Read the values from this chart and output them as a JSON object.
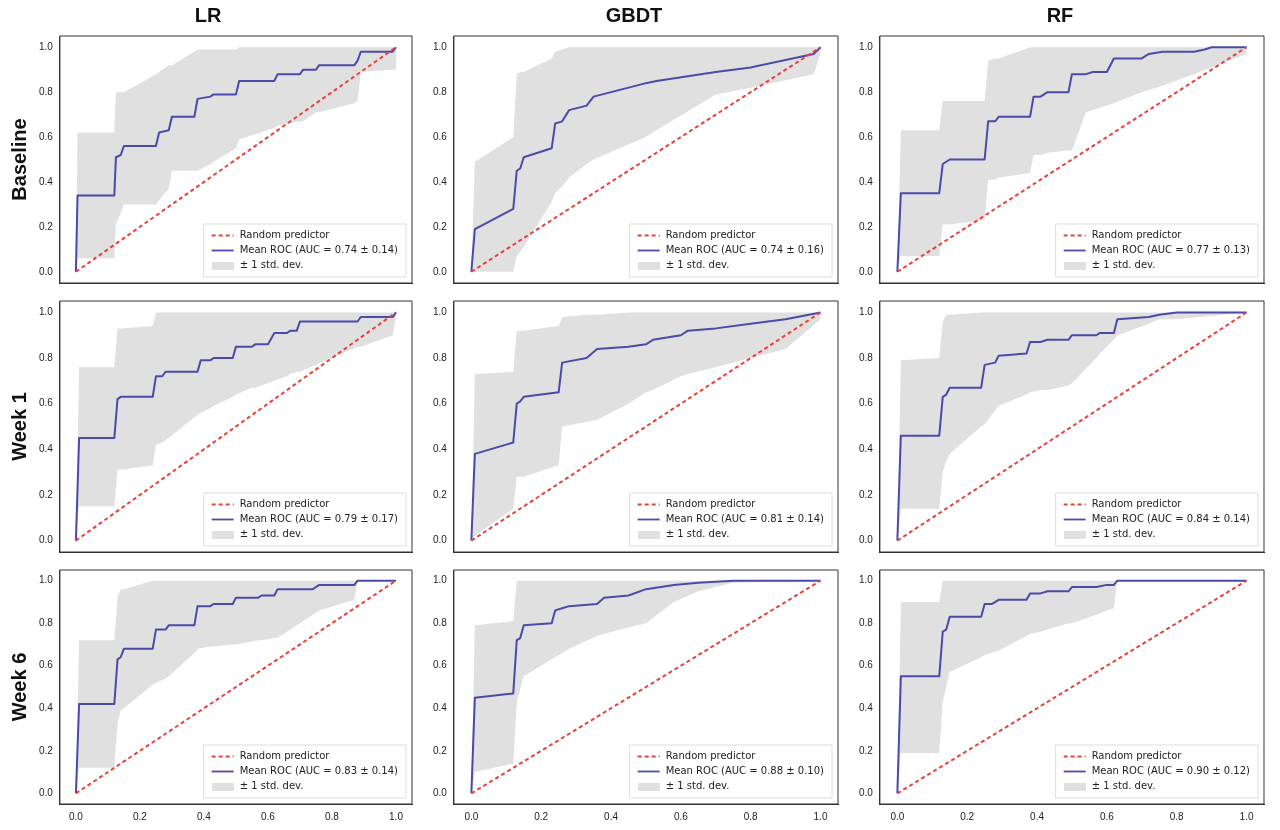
{
  "chart_data": [
    {
      "type": "line",
      "title": "LR",
      "ylabel": "Baseline",
      "annotations": [
        "± 1 std. dev."
      ],
      "xlim": [
        -0.05,
        1.05
      ],
      "ylim": [
        -0.05,
        1.05
      ],
      "xticks": [
        {
          "value": 0,
          "label": null
        },
        {
          "value": 0.2,
          "label": null
        },
        {
          "value": 0.4,
          "label": null
        },
        {
          "value": 0.6,
          "label": null
        },
        {
          "value": 0.8,
          "label": null
        },
        {
          "value": 1,
          "label": null
        }
      ],
      "yticks": [
        {
          "value": 0,
          "label": "0.0"
        },
        {
          "value": 0.2,
          "label": "0.2"
        },
        {
          "value": 0.4,
          "label": "0.4"
        },
        {
          "value": 0.6,
          "label": "0.6"
        },
        {
          "value": 0.8,
          "label": "0.8"
        },
        {
          "value": 1,
          "label": "1.0"
        }
      ],
      "tick_labels": "y",
      "legend": "bottom right",
      "marker": "none",
      "series": [
        {
          "name": "Random predictor",
          "color": "#e8413a",
          "line_style": "dashed",
          "x": [
            0,
            1
          ],
          "values": [
            0,
            1
          ]
        },
        {
          "name": "Mean ROC (AUC = 0.74 ± 0.14)",
          "color": "#4a4aaa",
          "line_style": "solid",
          "x": [
            0,
            0.005,
            0.12,
            0.125,
            0.14,
            0.15,
            0.25,
            0.26,
            0.29,
            0.3,
            0.37,
            0.38,
            0.42,
            0.43,
            0.5,
            0.51,
            0.62,
            0.63,
            0.7,
            0.71,
            0.75,
            0.76,
            0.87,
            0.88,
            0.89,
            0.99,
            1
          ],
          "values": [
            0,
            0.34,
            0.34,
            0.51,
            0.52,
            0.56,
            0.56,
            0.62,
            0.63,
            0.69,
            0.69,
            0.77,
            0.78,
            0.79,
            0.79,
            0.85,
            0.85,
            0.88,
            0.88,
            0.9,
            0.9,
            0.92,
            0.92,
            0.94,
            0.98,
            0.98,
            1
          ],
          "lower": [
            0,
            0.06,
            0.06,
            0.21,
            0.26,
            0.3,
            0.3,
            0.32,
            0.37,
            0.45,
            0.45,
            0.45,
            0.48,
            0.49,
            0.55,
            0.59,
            0.64,
            0.65,
            0.67,
            0.67,
            0.71,
            0.71,
            0.75,
            0.76,
            0.89,
            0.9,
            0.9
          ],
          "upper": [
            0,
            0.62,
            0.62,
            0.8,
            0.8,
            0.8,
            0.88,
            0.89,
            0.92,
            0.92,
            0.98,
            0.99,
            0.99,
            0.99,
            0.99,
            1,
            1,
            1,
            1,
            1,
            1,
            1,
            1,
            1,
            1,
            1,
            1
          ]
        }
      ]
    },
    {
      "type": "line",
      "title": "GBDT",
      "annotations": [
        "± 1 std. dev."
      ],
      "xlim": [
        -0.05,
        1.05
      ],
      "ylim": [
        -0.05,
        1.05
      ],
      "xticks": [
        {
          "value": 0,
          "label": null
        },
        {
          "value": 0.2,
          "label": null
        },
        {
          "value": 0.4,
          "label": null
        },
        {
          "value": 0.6,
          "label": null
        },
        {
          "value": 0.8,
          "label": null
        },
        {
          "value": 1,
          "label": null
        }
      ],
      "yticks": [
        {
          "value": 0,
          "label": "0.0"
        },
        {
          "value": 0.2,
          "label": "0.2"
        },
        {
          "value": 0.4,
          "label": "0.4"
        },
        {
          "value": 0.6,
          "label": "0.6"
        },
        {
          "value": 0.8,
          "label": "0.8"
        },
        {
          "value": 1,
          "label": "1.0"
        }
      ],
      "tick_labels": "y",
      "legend": "bottom right",
      "marker": "none",
      "series": [
        {
          "name": "Random predictor",
          "color": "#e8413a",
          "line_style": "dashed",
          "x": [
            0,
            1
          ],
          "values": [
            0,
            1
          ]
        },
        {
          "name": "Mean ROC (AUC = 0.74 ± 0.16)",
          "color": "#4a4aaa",
          "line_style": "solid",
          "x": [
            0,
            0.01,
            0.12,
            0.13,
            0.14,
            0.15,
            0.23,
            0.24,
            0.26,
            0.28,
            0.33,
            0.35,
            0.5,
            0.53,
            0.7,
            0.8,
            0.98,
            1
          ],
          "values": [
            0,
            0.19,
            0.28,
            0.45,
            0.46,
            0.51,
            0.55,
            0.66,
            0.67,
            0.72,
            0.74,
            0.78,
            0.84,
            0.85,
            0.89,
            0.91,
            0.97,
            1
          ],
          "lower": [
            0,
            0,
            0,
            0.07,
            0.09,
            0.11,
            0.31,
            0.35,
            0.38,
            0.42,
            0.48,
            0.5,
            0.6,
            0.63,
            0.79,
            0.82,
            0.88,
            0.97
          ],
          "upper": [
            0,
            0.49,
            0.6,
            0.88,
            0.89,
            0.89,
            0.95,
            0.98,
            0.99,
            1,
            1,
            1,
            1,
            1,
            1,
            1,
            1,
            1
          ]
        }
      ]
    },
    {
      "type": "line",
      "title": "RF",
      "annotations": [
        "± 1 std. dev."
      ],
      "xlim": [
        -0.05,
        1.05
      ],
      "ylim": [
        -0.05,
        1.05
      ],
      "xticks": [
        {
          "value": 0,
          "label": null
        },
        {
          "value": 0.2,
          "label": null
        },
        {
          "value": 0.4,
          "label": null
        },
        {
          "value": 0.6,
          "label": null
        },
        {
          "value": 0.8,
          "label": null
        },
        {
          "value": 1,
          "label": null
        }
      ],
      "yticks": [
        {
          "value": 0,
          "label": "0.0"
        },
        {
          "value": 0.2,
          "label": "0.2"
        },
        {
          "value": 0.4,
          "label": "0.4"
        },
        {
          "value": 0.6,
          "label": "0.6"
        },
        {
          "value": 0.8,
          "label": "0.8"
        },
        {
          "value": 1,
          "label": "1.0"
        }
      ],
      "tick_labels": "y",
      "legend": "bottom right",
      "marker": "none",
      "series": [
        {
          "name": "Random predictor",
          "color": "#e8413a",
          "line_style": "dashed",
          "x": [
            0,
            1
          ],
          "values": [
            0,
            1
          ]
        },
        {
          "name": "Mean ROC (AUC = 0.77 ± 0.13)",
          "color": "#4a4aaa",
          "line_style": "solid",
          "x": [
            0,
            0.01,
            0.12,
            0.13,
            0.14,
            0.15,
            0.25,
            0.26,
            0.28,
            0.29,
            0.38,
            0.39,
            0.41,
            0.43,
            0.49,
            0.5,
            0.54,
            0.56,
            0.6,
            0.62,
            0.7,
            0.72,
            0.76,
            0.85,
            0.88,
            0.9,
            1
          ],
          "values": [
            0,
            0.35,
            0.35,
            0.48,
            0.49,
            0.5,
            0.5,
            0.67,
            0.67,
            0.69,
            0.69,
            0.78,
            0.78,
            0.8,
            0.8,
            0.88,
            0.88,
            0.89,
            0.89,
            0.95,
            0.95,
            0.97,
            0.98,
            0.98,
            0.99,
            1,
            1
          ],
          "lower": [
            0,
            0.07,
            0.07,
            0.21,
            0.21,
            0.21,
            0.23,
            0.41,
            0.41,
            0.42,
            0.44,
            0.52,
            0.52,
            0.53,
            0.54,
            0.54,
            0.71,
            0.72,
            0.74,
            0.75,
            0.8,
            0.81,
            0.83,
            0.88,
            0.9,
            0.91,
            0.97
          ],
          "upper": [
            0,
            0.63,
            0.63,
            0.76,
            0.76,
            0.76,
            0.76,
            0.94,
            0.95,
            0.95,
            1,
            1,
            1,
            1,
            1,
            1,
            1,
            1,
            1,
            1,
            1,
            1,
            1,
            1,
            1,
            1,
            1
          ]
        }
      ]
    },
    {
      "type": "line",
      "ylabel": "Week 1",
      "annotations": [
        "± 1 std. dev."
      ],
      "xlim": [
        -0.05,
        1.05
      ],
      "ylim": [
        -0.05,
        1.05
      ],
      "xticks": [
        {
          "value": 0,
          "label": null
        },
        {
          "value": 0.2,
          "label": null
        },
        {
          "value": 0.4,
          "label": null
        },
        {
          "value": 0.6,
          "label": null
        },
        {
          "value": 0.8,
          "label": null
        },
        {
          "value": 1,
          "label": null
        }
      ],
      "yticks": [
        {
          "value": 0,
          "label": "0.0"
        },
        {
          "value": 0.2,
          "label": "0.2"
        },
        {
          "value": 0.4,
          "label": "0.4"
        },
        {
          "value": 0.6,
          "label": "0.6"
        },
        {
          "value": 0.8,
          "label": "0.8"
        },
        {
          "value": 1,
          "label": "1.0"
        }
      ],
      "tick_labels": "y",
      "legend": "bottom right",
      "marker": "none",
      "series": [
        {
          "name": "Random predictor",
          "color": "#e8413a",
          "line_style": "dashed",
          "x": [
            0,
            1
          ],
          "values": [
            0,
            1
          ]
        },
        {
          "name": "Mean ROC (AUC = 0.79 ± 0.17)",
          "color": "#4a4aaa",
          "line_style": "solid",
          "x": [
            0,
            0.01,
            0.12,
            0.13,
            0.14,
            0.24,
            0.25,
            0.27,
            0.28,
            0.38,
            0.39,
            0.42,
            0.43,
            0.49,
            0.5,
            0.55,
            0.56,
            0.6,
            0.62,
            0.66,
            0.67,
            0.69,
            0.7,
            0.88,
            0.89,
            0.99,
            1
          ],
          "values": [
            0,
            0.45,
            0.45,
            0.62,
            0.63,
            0.63,
            0.72,
            0.72,
            0.74,
            0.74,
            0.79,
            0.79,
            0.8,
            0.8,
            0.85,
            0.85,
            0.86,
            0.86,
            0.91,
            0.91,
            0.92,
            0.92,
            0.96,
            0.96,
            0.98,
            0.98,
            1
          ],
          "lower": [
            0,
            0.15,
            0.15,
            0.31,
            0.31,
            0.33,
            0.42,
            0.43,
            0.44,
            0.55,
            0.56,
            0.58,
            0.59,
            0.63,
            0.64,
            0.67,
            0.67,
            0.69,
            0.7,
            0.72,
            0.73,
            0.74,
            0.74,
            0.85,
            0.85,
            0.9,
            0.98
          ],
          "upper": [
            0,
            0.76,
            0.76,
            0.93,
            0.93,
            0.94,
            1,
            1,
            1,
            1,
            1,
            1,
            1,
            1,
            1,
            1,
            1,
            1,
            1,
            1,
            1,
            1,
            1,
            1,
            1,
            1,
            1
          ]
        }
      ]
    },
    {
      "type": "line",
      "annotations": [
        "± 1 std. dev."
      ],
      "xlim": [
        -0.05,
        1.05
      ],
      "ylim": [
        -0.05,
        1.05
      ],
      "xticks": [
        {
          "value": 0,
          "label": null
        },
        {
          "value": 0.2,
          "label": null
        },
        {
          "value": 0.4,
          "label": null
        },
        {
          "value": 0.6,
          "label": null
        },
        {
          "value": 0.8,
          "label": null
        },
        {
          "value": 1,
          "label": null
        }
      ],
      "yticks": [
        {
          "value": 0,
          "label": "0.0"
        },
        {
          "value": 0.2,
          "label": "0.2"
        },
        {
          "value": 0.4,
          "label": "0.4"
        },
        {
          "value": 0.6,
          "label": "0.6"
        },
        {
          "value": 0.8,
          "label": "0.8"
        },
        {
          "value": 1,
          "label": "1.0"
        }
      ],
      "tick_labels": "y",
      "legend": "bottom right",
      "marker": "none",
      "series": [
        {
          "name": "Random predictor",
          "color": "#e8413a",
          "line_style": "dashed",
          "x": [
            0,
            1
          ],
          "values": [
            0,
            1
          ]
        },
        {
          "name": "Mean ROC (AUC = 0.81 ± 0.14)",
          "color": "#4a4aaa",
          "line_style": "solid",
          "x": [
            0,
            0.01,
            0.12,
            0.13,
            0.14,
            0.15,
            0.25,
            0.26,
            0.33,
            0.36,
            0.45,
            0.5,
            0.52,
            0.6,
            0.62,
            0.7,
            0.8,
            0.9,
            1
          ],
          "values": [
            0,
            0.38,
            0.43,
            0.6,
            0.61,
            0.63,
            0.65,
            0.78,
            0.8,
            0.84,
            0.85,
            0.86,
            0.88,
            0.9,
            0.92,
            0.93,
            0.95,
            0.97,
            1
          ],
          "lower": [
            0,
            0.02,
            0.14,
            0.28,
            0.28,
            0.28,
            0.33,
            0.5,
            0.52,
            0.53,
            0.6,
            0.65,
            0.66,
            0.72,
            0.73,
            0.76,
            0.8,
            0.84,
            0.97
          ],
          "upper": [
            0,
            0.73,
            0.74,
            0.92,
            0.92,
            0.92,
            0.94,
            0.98,
            0.99,
            0.99,
            1,
            1,
            1,
            1,
            1,
            1,
            1,
            1,
            1
          ]
        }
      ]
    },
    {
      "type": "line",
      "annotations": [
        "± 1 std. dev."
      ],
      "xlim": [
        -0.05,
        1.05
      ],
      "ylim": [
        -0.05,
        1.05
      ],
      "xticks": [
        {
          "value": 0,
          "label": null
        },
        {
          "value": 0.2,
          "label": null
        },
        {
          "value": 0.4,
          "label": null
        },
        {
          "value": 0.6,
          "label": null
        },
        {
          "value": 0.8,
          "label": null
        },
        {
          "value": 1,
          "label": null
        }
      ],
      "yticks": [
        {
          "value": 0,
          "label": "0.0"
        },
        {
          "value": 0.2,
          "label": "0.2"
        },
        {
          "value": 0.4,
          "label": "0.4"
        },
        {
          "value": 0.6,
          "label": "0.6"
        },
        {
          "value": 0.8,
          "label": "0.8"
        },
        {
          "value": 1,
          "label": "1.0"
        }
      ],
      "tick_labels": "y",
      "legend": "bottom right",
      "marker": "none",
      "series": [
        {
          "name": "Random predictor",
          "color": "#e8413a",
          "line_style": "dashed",
          "x": [
            0,
            1
          ],
          "values": [
            0,
            1
          ]
        },
        {
          "name": "Mean ROC (AUC = 0.84 ± 0.14)",
          "color": "#4a4aaa",
          "line_style": "solid",
          "x": [
            0,
            0.01,
            0.12,
            0.13,
            0.14,
            0.15,
            0.24,
            0.25,
            0.28,
            0.29,
            0.37,
            0.38,
            0.41,
            0.43,
            0.49,
            0.5,
            0.57,
            0.58,
            0.62,
            0.63,
            0.72,
            0.75,
            0.8,
            1
          ],
          "values": [
            0,
            0.46,
            0.46,
            0.63,
            0.64,
            0.67,
            0.67,
            0.77,
            0.78,
            0.81,
            0.82,
            0.87,
            0.87,
            0.88,
            0.88,
            0.9,
            0.9,
            0.91,
            0.91,
            0.97,
            0.98,
            0.99,
            1,
            1
          ],
          "lower": [
            0,
            0.14,
            0.14,
            0.3,
            0.35,
            0.38,
            0.5,
            0.51,
            0.57,
            0.59,
            0.64,
            0.65,
            0.66,
            0.66,
            0.68,
            0.69,
            0.8,
            0.82,
            0.88,
            0.9,
            0.95,
            0.97,
            0.97,
            1
          ],
          "upper": [
            0,
            0.79,
            0.8,
            0.96,
            0.99,
            0.99,
            1,
            1,
            1,
            1,
            1,
            1,
            1,
            1,
            1,
            1,
            1,
            1,
            1,
            1,
            1,
            1,
            1,
            1
          ]
        }
      ]
    },
    {
      "type": "line",
      "ylabel": "Week 6",
      "annotations": [
        "± 1 std. dev."
      ],
      "xlim": [
        -0.05,
        1.05
      ],
      "ylim": [
        -0.05,
        1.05
      ],
      "xticks": [
        {
          "value": 0,
          "label": "0.0"
        },
        {
          "value": 0.2,
          "label": "0.2"
        },
        {
          "value": 0.4,
          "label": "0.4"
        },
        {
          "value": 0.6,
          "label": "0.6"
        },
        {
          "value": 0.8,
          "label": "0.8"
        },
        {
          "value": 1,
          "label": "1.0"
        }
      ],
      "yticks": [
        {
          "value": 0,
          "label": "0.0"
        },
        {
          "value": 0.2,
          "label": "0.2"
        },
        {
          "value": 0.4,
          "label": "0.4"
        },
        {
          "value": 0.6,
          "label": "0.6"
        },
        {
          "value": 0.8,
          "label": "0.8"
        },
        {
          "value": 1,
          "label": "1.0"
        }
      ],
      "legend": "bottom right",
      "marker": "none",
      "series": [
        {
          "name": "Random predictor",
          "color": "#e8413a",
          "line_style": "dashed",
          "x": [
            0,
            1
          ],
          "values": [
            0,
            1
          ]
        },
        {
          "name": "Mean ROC (AUC = 0.83 ± 0.14)",
          "color": "#4a4aaa",
          "line_style": "solid",
          "x": [
            0,
            0.01,
            0.12,
            0.13,
            0.14,
            0.15,
            0.24,
            0.25,
            0.28,
            0.29,
            0.37,
            0.38,
            0.42,
            0.43,
            0.49,
            0.5,
            0.57,
            0.58,
            0.62,
            0.63,
            0.74,
            0.76,
            0.87,
            0.88,
            1
          ],
          "values": [
            0,
            0.42,
            0.42,
            0.63,
            0.64,
            0.68,
            0.68,
            0.77,
            0.77,
            0.79,
            0.79,
            0.88,
            0.88,
            0.89,
            0.89,
            0.92,
            0.92,
            0.93,
            0.93,
            0.96,
            0.96,
            0.98,
            0.98,
            1,
            1
          ],
          "lower": [
            0,
            0.12,
            0.12,
            0.33,
            0.39,
            0.4,
            0.51,
            0.52,
            0.54,
            0.55,
            0.66,
            0.68,
            0.69,
            0.69,
            0.7,
            0.7,
            0.72,
            0.72,
            0.73,
            0.73,
            0.84,
            0.86,
            0.91,
            1,
            1
          ],
          "upper": [
            0,
            0.72,
            0.72,
            0.92,
            0.96,
            0.96,
            1,
            1,
            1,
            1,
            1,
            1,
            1,
            1,
            1,
            1,
            1,
            1,
            1,
            1,
            1,
            1,
            1,
            1,
            1
          ]
        }
      ]
    },
    {
      "type": "line",
      "annotations": [
        "± 1 std. dev."
      ],
      "xlim": [
        -0.05,
        1.05
      ],
      "ylim": [
        -0.05,
        1.05
      ],
      "xticks": [
        {
          "value": 0,
          "label": "0.0"
        },
        {
          "value": 0.2,
          "label": "0.2"
        },
        {
          "value": 0.4,
          "label": "0.4"
        },
        {
          "value": 0.6,
          "label": "0.6"
        },
        {
          "value": 0.8,
          "label": "0.8"
        },
        {
          "value": 1,
          "label": "1.0"
        }
      ],
      "yticks": [
        {
          "value": 0,
          "label": "0.0"
        },
        {
          "value": 0.2,
          "label": "0.2"
        },
        {
          "value": 0.4,
          "label": "0.4"
        },
        {
          "value": 0.6,
          "label": "0.6"
        },
        {
          "value": 0.8,
          "label": "0.8"
        },
        {
          "value": 1,
          "label": "1.0"
        }
      ],
      "legend": "bottom right",
      "marker": "none",
      "series": [
        {
          "name": "Random predictor",
          "color": "#e8413a",
          "line_style": "dashed",
          "x": [
            0,
            1
          ],
          "values": [
            0,
            1
          ]
        },
        {
          "name": "Mean ROC (AUC = 0.88 ± 0.10)",
          "color": "#4a4aaa",
          "line_style": "solid",
          "x": [
            0,
            0.01,
            0.12,
            0.13,
            0.14,
            0.15,
            0.23,
            0.24,
            0.26,
            0.28,
            0.36,
            0.38,
            0.45,
            0.5,
            0.58,
            0.65,
            0.75,
            1
          ],
          "values": [
            0,
            0.45,
            0.47,
            0.72,
            0.73,
            0.79,
            0.8,
            0.86,
            0.87,
            0.88,
            0.89,
            0.92,
            0.93,
            0.96,
            0.98,
            0.99,
            1,
            1
          ],
          "lower": [
            0,
            0.1,
            0.14,
            0.43,
            0.49,
            0.55,
            0.63,
            0.64,
            0.66,
            0.68,
            0.74,
            0.75,
            0.78,
            0.8,
            0.9,
            0.95,
            0.99,
            1
          ],
          "upper": [
            0,
            0.79,
            0.81,
            1,
            1,
            1,
            1,
            1,
            1,
            1,
            1,
            1,
            1,
            1,
            1,
            1,
            1,
            1
          ]
        }
      ]
    },
    {
      "type": "line",
      "annotations": [
        "± 1 std. dev."
      ],
      "xlim": [
        -0.05,
        1.05
      ],
      "ylim": [
        -0.05,
        1.05
      ],
      "xticks": [
        {
          "value": 0,
          "label": "0.0"
        },
        {
          "value": 0.2,
          "label": "0.2"
        },
        {
          "value": 0.4,
          "label": "0.4"
        },
        {
          "value": 0.6,
          "label": "0.6"
        },
        {
          "value": 0.8,
          "label": "0.8"
        },
        {
          "value": 1,
          "label": "1.0"
        }
      ],
      "yticks": [
        {
          "value": 0,
          "label": "0.0"
        },
        {
          "value": 0.2,
          "label": "0.2"
        },
        {
          "value": 0.4,
          "label": "0.4"
        },
        {
          "value": 0.6,
          "label": "0.6"
        },
        {
          "value": 0.8,
          "label": "0.8"
        },
        {
          "value": 1,
          "label": "1.0"
        }
      ],
      "legend": "bottom right",
      "marker": "none",
      "series": [
        {
          "name": "Random predictor",
          "color": "#e8413a",
          "line_style": "dashed",
          "x": [
            0,
            1
          ],
          "values": [
            0,
            1
          ]
        },
        {
          "name": "Mean ROC (AUC = 0.90 ± 0.12)",
          "color": "#4a4aaa",
          "line_style": "solid",
          "x": [
            0,
            0.01,
            0.12,
            0.13,
            0.14,
            0.15,
            0.24,
            0.25,
            0.27,
            0.29,
            0.37,
            0.38,
            0.41,
            0.43,
            0.49,
            0.5,
            0.57,
            0.6,
            0.62,
            0.63,
            1
          ],
          "values": [
            0,
            0.55,
            0.55,
            0.76,
            0.77,
            0.83,
            0.83,
            0.89,
            0.89,
            0.91,
            0.91,
            0.94,
            0.94,
            0.95,
            0.95,
            0.97,
            0.97,
            0.98,
            0.98,
            1,
            1
          ],
          "lower": [
            0,
            0.19,
            0.19,
            0.43,
            0.5,
            0.57,
            0.64,
            0.65,
            0.66,
            0.67,
            0.74,
            0.75,
            0.76,
            0.77,
            0.8,
            0.8,
            0.84,
            0.86,
            0.87,
            1,
            1
          ],
          "upper": [
            0,
            0.9,
            0.9,
            1,
            1,
            1,
            1,
            1,
            1,
            1,
            1,
            1,
            1,
            1,
            1,
            1,
            1,
            1,
            1,
            1,
            1
          ]
        }
      ]
    }
  ]
}
